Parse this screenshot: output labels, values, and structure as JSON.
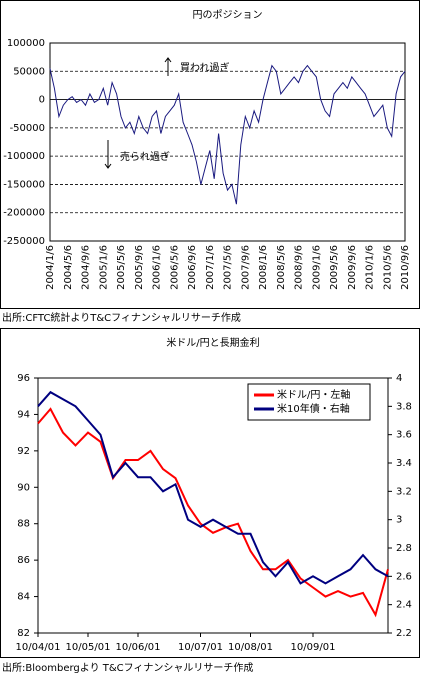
{
  "chart_data": [
    {
      "type": "line",
      "title": "円のポジション",
      "categories": [
        "2004/1/6",
        null,
        null,
        null,
        "2004/5/6",
        null,
        null,
        null,
        "2004/9/6",
        null,
        null,
        null,
        "2005/1/6",
        null,
        null,
        null,
        "2005/5/6",
        null,
        null,
        null,
        "2005/9/6",
        null,
        null,
        null,
        "2006/1/6",
        null,
        null,
        null,
        "2006/5/6",
        null,
        null,
        null,
        "2006/9/6",
        null,
        null,
        null,
        "2007/1/6",
        null,
        null,
        null,
        "2007/5/6",
        null,
        null,
        null,
        "2007/9/6",
        null,
        null,
        null,
        "2008/1/6",
        null,
        null,
        null,
        "2008/5/6",
        null,
        null,
        null,
        "2008/9/6",
        null,
        null,
        null,
        "2009/1/6",
        null,
        null,
        null,
        "2009/5/6",
        null,
        null,
        null,
        "2009/9/6",
        null,
        null,
        null,
        "2010/1/6",
        null,
        null,
        null,
        "2010/5/6",
        null,
        null,
        null,
        "2010/9/6"
      ],
      "values": [
        55000,
        20000,
        -30000,
        -10000,
        0,
        5000,
        -5000,
        0,
        -10000,
        10000,
        -5000,
        0,
        20000,
        -10000,
        30000,
        10000,
        -30000,
        -50000,
        -40000,
        -60000,
        -30000,
        -50000,
        -60000,
        -30000,
        -20000,
        -60000,
        -30000,
        -20000,
        -10000,
        10000,
        -40000,
        -60000,
        -80000,
        -110000,
        -150000,
        -120000,
        -90000,
        -140000,
        -60000,
        -130000,
        -160000,
        -150000,
        -185000,
        -80000,
        -30000,
        -50000,
        -20000,
        -40000,
        0,
        30000,
        60000,
        50000,
        10000,
        20000,
        30000,
        40000,
        30000,
        50000,
        60000,
        50000,
        40000,
        0,
        -20000,
        -30000,
        10000,
        20000,
        30000,
        20000,
        40000,
        30000,
        20000,
        10000,
        -10000,
        -30000,
        -20000,
        -10000,
        -50000,
        -65000,
        10000,
        40000,
        50000
      ],
      "color": "#1a1a80",
      "ylim": [
        -250000,
        100000
      ],
      "yticks": [
        -250000,
        -200000,
        -150000,
        -100000,
        -50000,
        0,
        50000,
        100000
      ],
      "grid": true,
      "annotations": [
        "買われ過ぎ",
        "売られ過ぎ"
      ],
      "source": "出所:CFTC統計よりT&Cフィナンシャルリサーチ作成"
    },
    {
      "type": "line",
      "title": "米ドル/円と長期金利",
      "categories": [
        "10/04/01",
        null,
        null,
        null,
        "10/05/01",
        null,
        null,
        null,
        "10/06/01",
        null,
        null,
        null,
        null,
        "10/07/01",
        null,
        null,
        null,
        "10/08/01",
        null,
        null,
        null,
        null,
        "10/09/01",
        null,
        null,
        null,
        null,
        null,
        null
      ],
      "series": [
        {
          "name": "米ドル/円・左軸",
          "color": "#ff0000",
          "values": [
            93.5,
            94.3,
            93.0,
            92.3,
            93.0,
            92.5,
            90.5,
            91.5,
            91.5,
            92.0,
            91.0,
            90.5,
            89.0,
            88.0,
            87.5,
            87.8,
            88.0,
            86.5,
            85.5,
            85.5,
            86.0,
            85.0,
            84.5,
            84.0,
            84.3,
            84.0,
            84.2,
            83.0,
            85.5
          ]
        },
        {
          "name": "米10年債・右軸",
          "color": "#000080",
          "axis": "y2",
          "values": [
            3.8,
            3.9,
            3.85,
            3.8,
            3.7,
            3.6,
            3.3,
            3.4,
            3.3,
            3.3,
            3.2,
            3.25,
            3.0,
            2.95,
            3.0,
            2.95,
            2.9,
            2.9,
            2.7,
            2.6,
            2.7,
            2.55,
            2.6,
            2.55,
            2.6,
            2.65,
            2.75,
            2.65,
            2.6
          ]
        }
      ],
      "ylim": [
        82,
        96
      ],
      "yticks": [
        82,
        84,
        86,
        88,
        90,
        92,
        94,
        96
      ],
      "y2lim": [
        2.2,
        4
      ],
      "y2ticks": [
        2.2,
        2.4,
        2.6,
        2.8,
        3,
        3.2,
        3.4,
        3.6,
        3.8,
        4
      ],
      "grid": false,
      "legend": "upper right",
      "source": "出所:Bloombergより T&Cフィナンシャルリサーチ作成"
    }
  ]
}
